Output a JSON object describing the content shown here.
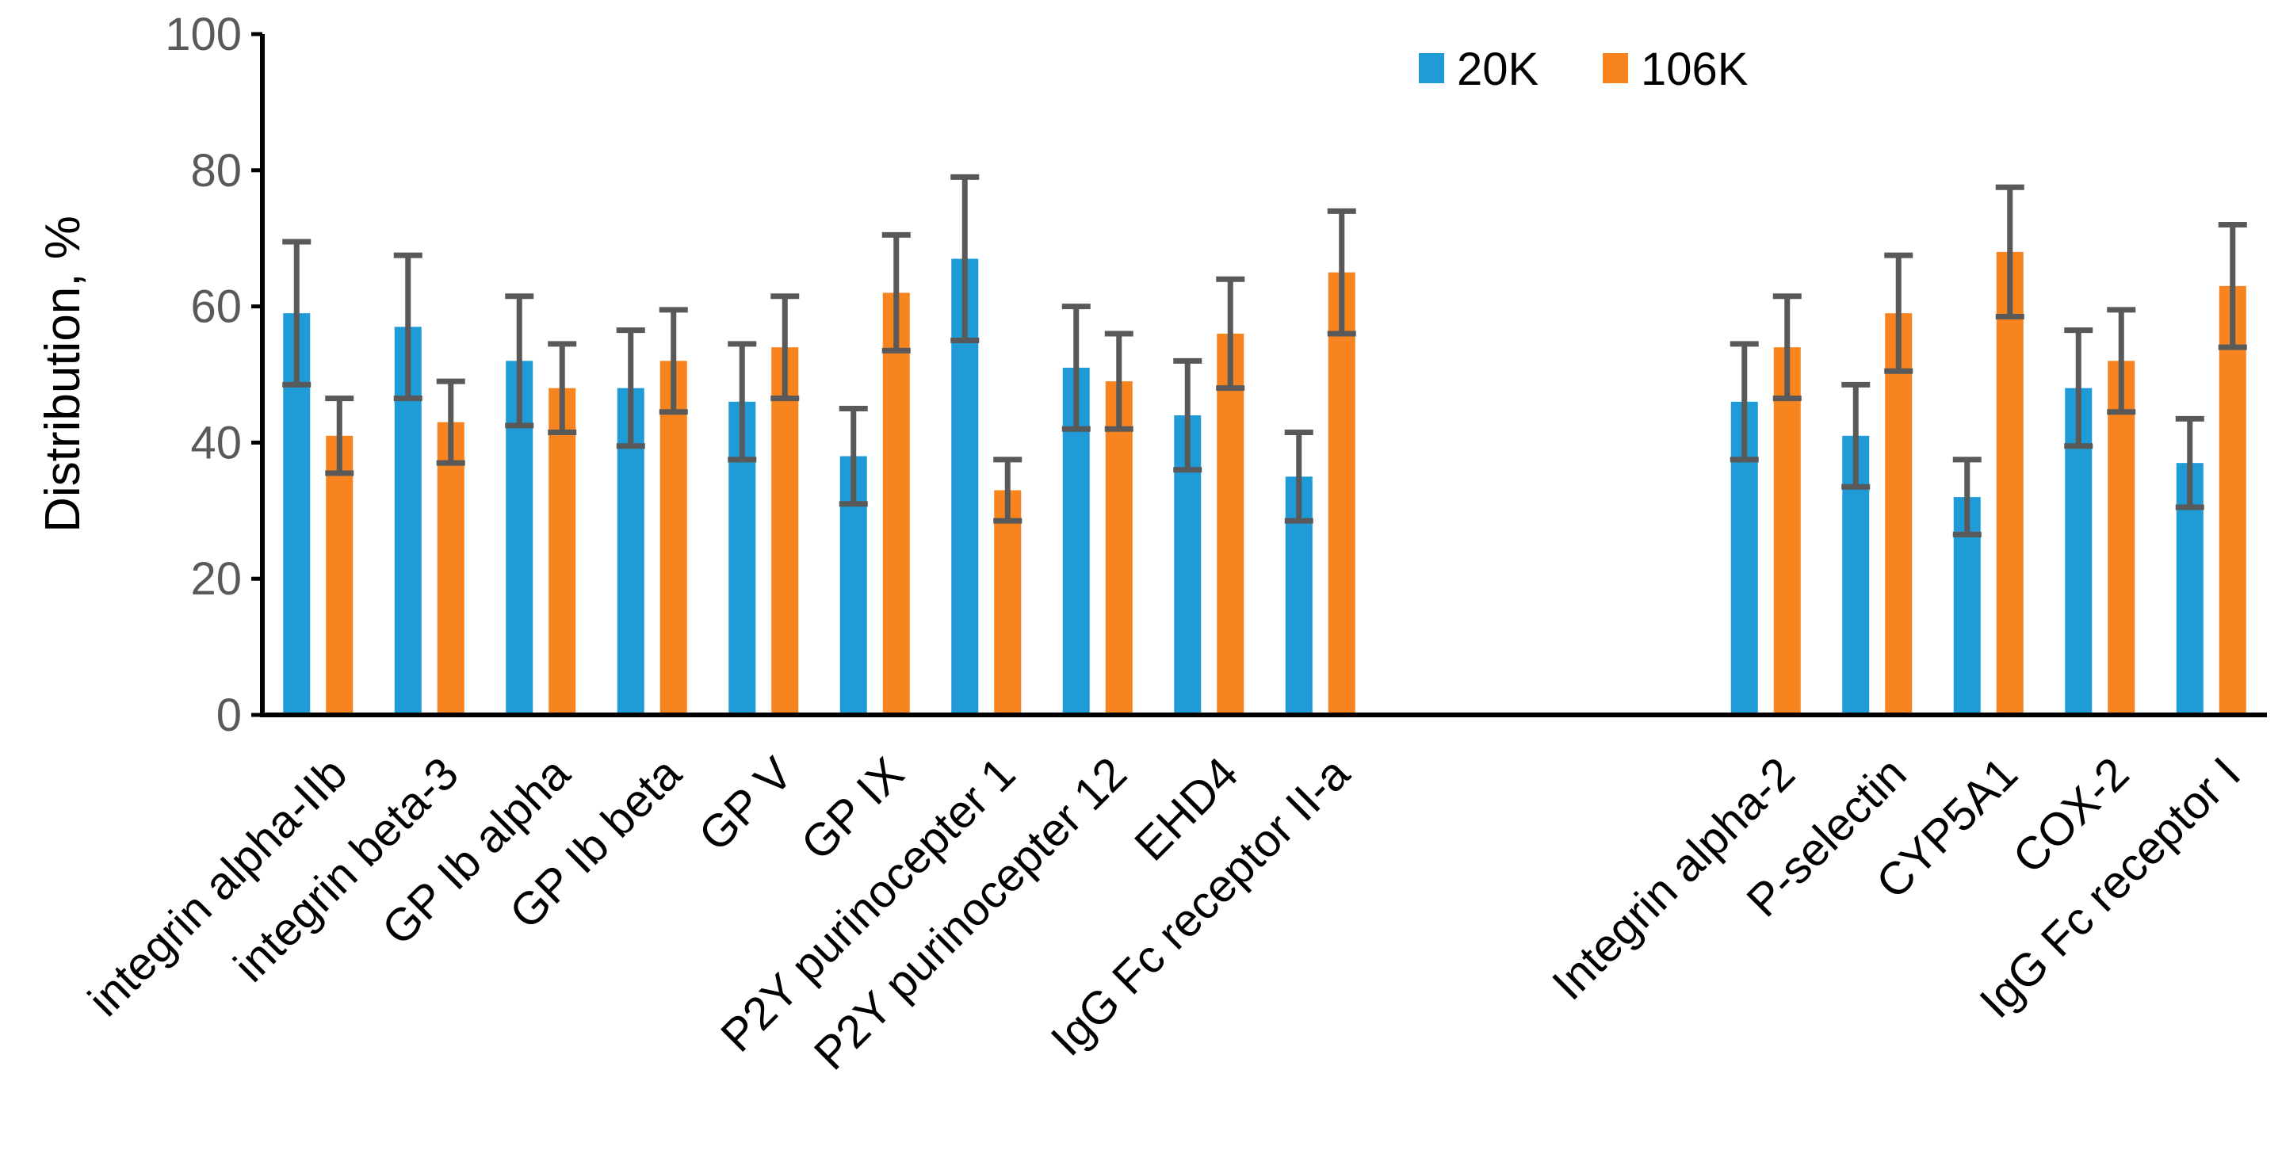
{
  "chart_data": {
    "type": "bar",
    "title": "",
    "xlabel": "",
    "ylabel": "Distribution, %",
    "ylim": [
      0,
      100
    ],
    "yticks": [
      0,
      20,
      40,
      60,
      80,
      100
    ],
    "legend_position": "top-right",
    "categories": [
      "integrin alpha-IIb",
      "integrin beta-3",
      "GP Ib alpha",
      "GP Ib beta",
      "GP V",
      "GP IX",
      "P2Y purinocepter 1",
      "P2Y purinocepter 12",
      "EHD4",
      "IgG Fc receptor II-a",
      "",
      "",
      "",
      "Integrin alpha-2",
      "P-selectin",
      "CYP5A1",
      "COX-2",
      "IgG Fc receptor I"
    ],
    "series": [
      {
        "name": "20K",
        "color": "#1F9BD7",
        "values": [
          59,
          57,
          52,
          48,
          46,
          38,
          67,
          51,
          44,
          35,
          null,
          null,
          null,
          46,
          41,
          32,
          48,
          37
        ],
        "errors": [
          10.5,
          10.5,
          9.5,
          8.5,
          8.5,
          7,
          12,
          9,
          8,
          6.5,
          null,
          null,
          null,
          8.5,
          7.5,
          5.5,
          8.5,
          6.5
        ]
      },
      {
        "name": "106K",
        "color": "#F7841F",
        "values": [
          41,
          43,
          48,
          52,
          54,
          62,
          33,
          49,
          56,
          65,
          null,
          null,
          null,
          54,
          59,
          68,
          52,
          63
        ],
        "errors": [
          5.5,
          6,
          6.5,
          7.5,
          7.5,
          8.5,
          4.5,
          7,
          8,
          9,
          null,
          null,
          null,
          7.5,
          8.5,
          9.5,
          7.5,
          9
        ]
      }
    ]
  }
}
